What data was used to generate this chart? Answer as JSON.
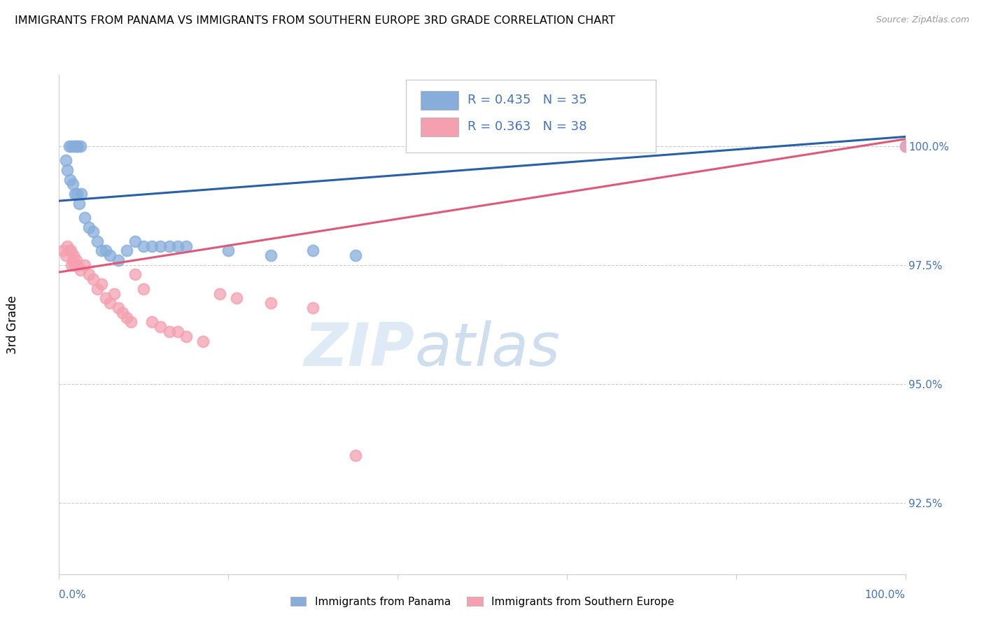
{
  "title": "IMMIGRANTS FROM PANAMA VS IMMIGRANTS FROM SOUTHERN EUROPE 3RD GRADE CORRELATION CHART",
  "source": "Source: ZipAtlas.com",
  "ylabel": "3rd Grade",
  "ytick_values": [
    92.5,
    95.0,
    97.5,
    100.0
  ],
  "xlim": [
    0.0,
    100.0
  ],
  "ylim": [
    91.0,
    101.5
  ],
  "legend_r_blue": "R = 0.435",
  "legend_n_blue": "N = 35",
  "legend_r_pink": "R = 0.363",
  "legend_n_pink": "N = 38",
  "legend_label_blue": "Immigrants from Panama",
  "legend_label_pink": "Immigrants from Southern Europe",
  "blue_color": "#87AEDB",
  "pink_color": "#F4A0B0",
  "blue_line_color": "#2860A8",
  "pink_line_color": "#E05878",
  "watermark_zip": "ZIP",
  "watermark_atlas": "atlas",
  "blue_scatter_x": [
    1.2,
    1.5,
    1.8,
    2.0,
    2.2,
    2.5,
    0.8,
    1.0,
    1.3,
    1.6,
    1.9,
    2.1,
    2.4,
    2.6,
    3.0,
    3.5,
    4.0,
    4.5,
    5.0,
    5.5,
    6.0,
    7.0,
    8.0,
    9.0,
    10.0,
    11.0,
    12.0,
    13.0,
    14.0,
    15.0,
    20.0,
    25.0,
    30.0,
    35.0,
    100.0
  ],
  "blue_scatter_y": [
    100.0,
    100.0,
    100.0,
    100.0,
    100.0,
    100.0,
    99.7,
    99.5,
    99.3,
    99.2,
    99.0,
    99.0,
    98.8,
    99.0,
    98.5,
    98.3,
    98.2,
    98.0,
    97.8,
    97.8,
    97.7,
    97.6,
    97.8,
    98.0,
    97.9,
    97.9,
    97.9,
    97.9,
    97.9,
    97.9,
    97.8,
    97.7,
    97.8,
    97.7,
    100.0
  ],
  "pink_scatter_x": [
    0.5,
    0.8,
    1.0,
    1.2,
    1.4,
    1.5,
    1.6,
    1.7,
    1.8,
    2.0,
    2.2,
    2.5,
    3.0,
    3.5,
    4.0,
    4.5,
    5.0,
    5.5,
    6.0,
    6.5,
    7.0,
    7.5,
    8.0,
    8.5,
    9.0,
    10.0,
    11.0,
    12.0,
    13.0,
    14.0,
    15.0,
    17.0,
    19.0,
    21.0,
    25.0,
    30.0,
    35.0,
    100.0
  ],
  "pink_scatter_y": [
    97.8,
    97.7,
    97.9,
    97.8,
    97.8,
    97.5,
    97.6,
    97.7,
    97.5,
    97.6,
    97.5,
    97.4,
    97.5,
    97.3,
    97.2,
    97.0,
    97.1,
    96.8,
    96.7,
    96.9,
    96.6,
    96.5,
    96.4,
    96.3,
    97.3,
    97.0,
    96.3,
    96.2,
    96.1,
    96.1,
    96.0,
    95.9,
    96.9,
    96.8,
    96.7,
    96.6,
    93.5,
    100.0
  ],
  "blue_line_x": [
    0.0,
    100.0
  ],
  "blue_line_y": [
    98.85,
    100.2
  ],
  "pink_line_x": [
    0.0,
    100.0
  ],
  "pink_line_y": [
    97.35,
    100.15
  ]
}
